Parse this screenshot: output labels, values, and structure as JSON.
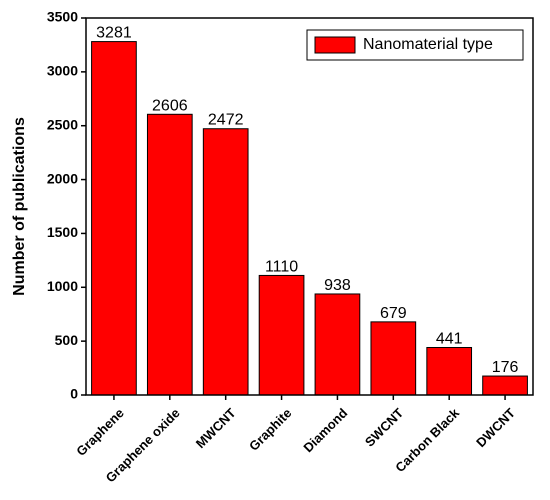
{
  "chart_data": {
    "type": "bar",
    "title": "",
    "xlabel": "",
    "ylabel": "Number of publications",
    "ylim": [
      0,
      3500
    ],
    "yticks": [
      0,
      500,
      1000,
      1500,
      2000,
      2500,
      3000,
      3500
    ],
    "categories": [
      "Graphene",
      "Graphene oxide",
      "MWCNT",
      "Graphite",
      "Diamond",
      "SWCNT",
      "Carbon Black",
      "DWCNT"
    ],
    "series": [
      {
        "name": "Nanomaterial type",
        "values": [
          3281,
          2606,
          2472,
          1110,
          938,
          679,
          441,
          176
        ],
        "color": "#ff0000"
      }
    ],
    "data_labels": [
      "3281",
      "2606",
      "2472",
      "1110",
      "938",
      "679",
      "441",
      "176"
    ],
    "legend_position": "top-right",
    "grid": false
  }
}
